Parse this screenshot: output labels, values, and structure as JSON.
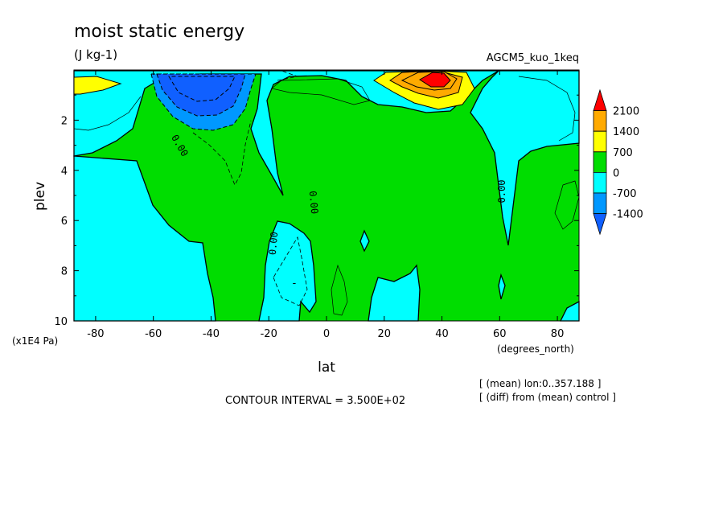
{
  "chart_data": {
    "type": "heatmap",
    "title": "moist static energy",
    "units": "(J kg-1)",
    "experiment": "AGCM5_kuo_1keq",
    "xlabel": "lat",
    "xunits": "(degrees_north)",
    "ylabel": "plev",
    "yunits": "(x1E4 Pa)",
    "xlim": [
      -87.5,
      87.5
    ],
    "ylim": [
      0,
      10
    ],
    "yreversed": true,
    "x_ticks": [
      -80,
      -60,
      -40,
      -20,
      0,
      20,
      40,
      60,
      80
    ],
    "y_ticks": [
      2,
      4,
      6,
      8,
      10
    ],
    "colorbar": {
      "levels": [
        -1400,
        -700,
        0,
        700,
        1400,
        2100
      ],
      "labels": [
        "2100",
        "1400",
        "700",
        "0",
        "-700",
        "-1400"
      ],
      "colors": [
        "#1060ff",
        "#0098ff",
        "#00ffff",
        "#00dd00",
        "#ffff00",
        "#ffaa00",
        "#ff0000"
      ]
    },
    "contour_interval_text": "CONTOUR INTERVAL = 3.500E+02",
    "annotation_lines": [
      "[ (mean) lon:0..357.188 ]",
      "[ (diff) from (mean) control ]"
    ],
    "contour_labels": [
      "0.00",
      "0.00",
      "0.00",
      "0.00"
    ],
    "contour_minus_label": "-",
    "regions": {
      "positive": [
        [
          -55,
          1
        ],
        [
          -30,
          2
        ],
        [
          -15,
          5
        ],
        [
          -8,
          8
        ],
        [
          2,
          10
        ],
        [
          10,
          8
        ],
        [
          22,
          6
        ],
        [
          40,
          4
        ],
        [
          55,
          6
        ],
        [
          62,
          7
        ],
        [
          75,
          2
        ],
        [
          87.5,
          1.5
        ]
      ],
      "negative_cores": [
        {
          "lat": -45,
          "plev": 0.6,
          "value": -1700
        },
        {
          "lat": -10,
          "plev": 8.0,
          "value": -400
        }
      ],
      "positive_cores": [
        {
          "lat": 37,
          "plev": 0.6,
          "value": 2300
        },
        {
          "lat": -82,
          "plev": 0.9,
          "value": 750
        }
      ]
    }
  }
}
